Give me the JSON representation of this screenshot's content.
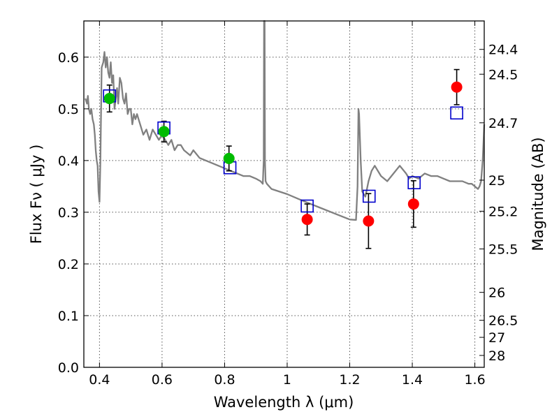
{
  "chart_data": {
    "type": "scatter",
    "xlabel": "Wavelength  λ (μm)",
    "ylabel": "Flux  Fν  ( μJy )",
    "y2label": "Magnitude (AB)",
    "xlim": [
      0.35,
      1.63
    ],
    "ylim": [
      0.0,
      0.67
    ],
    "grid": true,
    "x_ticks": [
      0.4,
      0.6,
      0.8,
      1.0,
      1.2,
      1.4,
      1.6
    ],
    "x_tick_labels": [
      "0.4",
      "0.6",
      "0.8",
      "1",
      "1.2",
      "1.4",
      "1.6"
    ],
    "y_ticks": [
      0.0,
      0.1,
      0.2,
      0.3,
      0.4,
      0.5,
      0.6
    ],
    "y_tick_labels": [
      "0.0",
      "0.1",
      "0.2",
      "0.3",
      "0.4",
      "0.5",
      "0.6"
    ],
    "mag_ticks": [
      {
        "label": "24.4",
        "flux": 0.615
      },
      {
        "label": "24.5",
        "flux": 0.567
      },
      {
        "label": "24.7",
        "flux": 0.473
      },
      {
        "label": "25",
        "flux": 0.362
      },
      {
        "label": "25.2",
        "flux": 0.302
      },
      {
        "label": "25.5",
        "flux": 0.229
      },
      {
        "label": "26",
        "flux": 0.145
      },
      {
        "label": "26.5",
        "flux": 0.091
      },
      {
        "label": "27",
        "flux": 0.058
      },
      {
        "label": "28",
        "flux": 0.023
      }
    ],
    "colors": {
      "model": "#808080",
      "observed_optical": "#00bb00",
      "observed_nir": "#ff0000",
      "model_photometry": "#0000cc",
      "errorbar": "#000000"
    },
    "series": [
      {
        "type": "line",
        "x": [
          0.355,
          0.36,
          0.363,
          0.366,
          0.37,
          0.374,
          0.378,
          0.382,
          0.385,
          0.388,
          0.391,
          0.394,
          0.397,
          0.4,
          0.403,
          0.407,
          0.412,
          0.416,
          0.42,
          0.424,
          0.428,
          0.432,
          0.436,
          0.44,
          0.444,
          0.448,
          0.452,
          0.456,
          0.46,
          0.465,
          0.47,
          0.475,
          0.48,
          0.485,
          0.49,
          0.495,
          0.5,
          0.505,
          0.51,
          0.515,
          0.52,
          0.525,
          0.53,
          0.54,
          0.55,
          0.56,
          0.57,
          0.58,
          0.59,
          0.6,
          0.61,
          0.62,
          0.63,
          0.64,
          0.65,
          0.66,
          0.67,
          0.68,
          0.69,
          0.7,
          0.72,
          0.74,
          0.76,
          0.78,
          0.8,
          0.82,
          0.84,
          0.86,
          0.88,
          0.9,
          0.915,
          0.922,
          0.925,
          0.926,
          0.927,
          0.928,
          0.929,
          0.931,
          0.935,
          0.95,
          1.0,
          1.05,
          1.1,
          1.15,
          1.2,
          1.22,
          1.225,
          1.228,
          1.23,
          1.235,
          1.24,
          1.25,
          1.26,
          1.27,
          1.28,
          1.3,
          1.32,
          1.34,
          1.36,
          1.38,
          1.39,
          1.4,
          1.42,
          1.44,
          1.46,
          1.48,
          1.5,
          1.52,
          1.54,
          1.56,
          1.58,
          1.59,
          1.6,
          1.61,
          1.615,
          1.62,
          1.625,
          1.63
        ],
        "y": [
          0.52,
          0.51,
          0.525,
          0.5,
          0.49,
          0.5,
          0.48,
          0.47,
          0.45,
          0.42,
          0.4,
          0.39,
          0.34,
          0.32,
          0.4,
          0.58,
          0.59,
          0.61,
          0.58,
          0.6,
          0.57,
          0.56,
          0.59,
          0.55,
          0.565,
          0.5,
          0.52,
          0.54,
          0.51,
          0.56,
          0.55,
          0.52,
          0.51,
          0.53,
          0.49,
          0.5,
          0.5,
          0.47,
          0.49,
          0.48,
          0.49,
          0.48,
          0.47,
          0.45,
          0.46,
          0.44,
          0.46,
          0.45,
          0.44,
          0.45,
          0.44,
          0.43,
          0.44,
          0.42,
          0.43,
          0.43,
          0.42,
          0.415,
          0.41,
          0.42,
          0.405,
          0.4,
          0.395,
          0.39,
          0.385,
          0.38,
          0.375,
          0.37,
          0.37,
          0.365,
          0.36,
          0.355,
          0.4,
          0.67,
          0.67,
          0.67,
          0.4,
          0.36,
          0.355,
          0.345,
          0.335,
          0.322,
          0.31,
          0.298,
          0.286,
          0.285,
          0.35,
          0.5,
          0.49,
          0.4,
          0.34,
          0.33,
          0.36,
          0.38,
          0.39,
          0.37,
          0.36,
          0.375,
          0.39,
          0.375,
          0.365,
          0.37,
          0.365,
          0.375,
          0.37,
          0.37,
          0.365,
          0.36,
          0.36,
          0.36,
          0.355,
          0.355,
          0.35,
          0.345,
          0.35,
          0.36,
          0.4,
          0.47
        ]
      },
      {
        "type": "scatter",
        "marker": "square",
        "x": [
          0.432,
          0.606,
          0.817,
          1.064,
          1.262,
          1.406,
          1.542
        ],
        "y": [
          0.525,
          0.463,
          0.386,
          0.312,
          0.331,
          0.357,
          0.492
        ]
      },
      {
        "type": "scatter",
        "marker": "circle",
        "x": [
          0.432,
          0.606,
          0.814
        ],
        "y": [
          0.52,
          0.456,
          0.404
        ],
        "yerr": [
          0.026,
          0.02,
          0.024
        ]
      },
      {
        "type": "scatter",
        "marker": "circle",
        "x": [
          1.064,
          1.26,
          1.404,
          1.542
        ],
        "y": [
          0.286,
          0.283,
          0.316,
          0.542
        ],
        "yerr": [
          0.03,
          0.053,
          0.045,
          0.034
        ]
      }
    ]
  }
}
